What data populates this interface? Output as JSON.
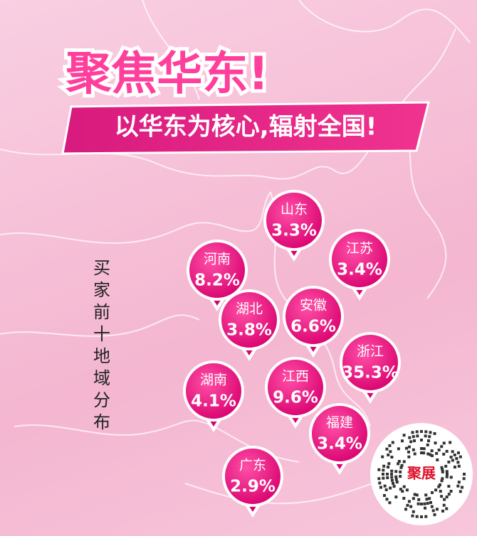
{
  "title": "聚焦华东!",
  "subtitle": "以华东为核心,辐射全国!",
  "side_label": "买家前十地域分布",
  "pins": [
    {
      "name": "山东",
      "value": "3.3%"
    },
    {
      "name": "河南",
      "value": "8.2%"
    },
    {
      "name": "江苏",
      "value": "3.4%"
    },
    {
      "name": "湖北",
      "value": "3.8%"
    },
    {
      "name": "安徽",
      "value": "6.6%"
    },
    {
      "name": "浙江",
      "value": "35.3%"
    },
    {
      "name": "湖南",
      "value": "4.1%"
    },
    {
      "name": "江西",
      "value": "9.6%"
    },
    {
      "name": "福建",
      "value": "3.4%"
    },
    {
      "name": "广东",
      "value": "2.9%"
    }
  ],
  "qr_logo": "聚展"
}
